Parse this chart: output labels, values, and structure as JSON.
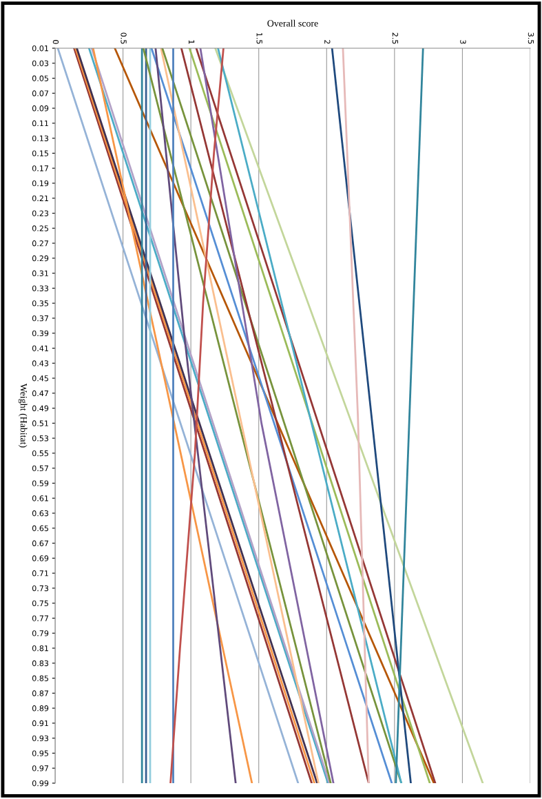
{
  "chart_data": {
    "type": "line",
    "orientation": "horizontal",
    "xlabel": "Overall score",
    "ylabel": "Weight (Habitat)",
    "xlim": [
      0,
      3.5
    ],
    "xticks": [
      0,
      0.5,
      1,
      1.5,
      2,
      2.5,
      3,
      3.5
    ],
    "ylim": [
      0.99,
      0.01
    ],
    "yticks": [
      0.01,
      0.03,
      0.05,
      0.07,
      0.09,
      0.11,
      0.13,
      0.15,
      0.17,
      0.19,
      0.21,
      0.23,
      0.25,
      0.27,
      0.29,
      0.31,
      0.33,
      0.35,
      0.37,
      0.39,
      0.41,
      0.43,
      0.45,
      0.47,
      0.49,
      0.51,
      0.53,
      0.55,
      0.57,
      0.59,
      0.61,
      0.63,
      0.65,
      0.67,
      0.69,
      0.71,
      0.73,
      0.75,
      0.77,
      0.79,
      0.81,
      0.83,
      0.85,
      0.87,
      0.89,
      0.91,
      0.93,
      0.95,
      0.97,
      0.99
    ],
    "grid": "x",
    "legend": false,
    "marker": "none",
    "line_style": "solid",
    "series": [
      {
        "color": "#95b3d7",
        "x": [
          0.01,
          0.99
        ],
        "values": [
          0.02,
          1.79
        ]
      },
      {
        "color": "#953735",
        "x": [
          0.01,
          0.99
        ],
        "values": [
          0.14,
          1.89
        ]
      },
      {
        "color": "#f79646",
        "x": [
          0.01,
          0.99
        ],
        "values": [
          0.15,
          1.91
        ]
      },
      {
        "color": "#403151",
        "x": [
          0.01,
          0.99
        ],
        "values": [
          0.16,
          1.93
        ]
      },
      {
        "color": "#4bacc6",
        "x": [
          0.01,
          0.99
        ],
        "values": [
          0.25,
          2.01
        ]
      },
      {
        "color": "#b3a2c7",
        "x": [
          0.01,
          0.99
        ],
        "values": [
          0.27,
          2.02
        ]
      },
      {
        "color": "#f79646",
        "x": [
          0.01,
          0.99
        ],
        "values": [
          0.28,
          1.45
        ]
      },
      {
        "color": "#b65708",
        "x": [
          0.01,
          0.99
        ],
        "values": [
          0.44,
          2.79
        ]
      },
      {
        "color": "#31859c",
        "x": [
          0.01,
          0.99
        ],
        "values": [
          0.64,
          0.64
        ]
      },
      {
        "color": "#376092",
        "x": [
          0.01,
          0.99
        ],
        "values": [
          0.67,
          0.67
        ]
      },
      {
        "color": "#93cddd",
        "x": [
          0.01,
          0.99
        ],
        "values": [
          0.7,
          0.7
        ]
      },
      {
        "color": "#77933c",
        "x": [
          0.01,
          0.99
        ],
        "values": [
          0.65,
          2.03
        ]
      },
      {
        "color": "#558ed5",
        "x": [
          0.01,
          0.99
        ],
        "values": [
          0.71,
          2.48
        ]
      },
      {
        "color": "#604a7b",
        "x": [
          0.01,
          0.39,
          0.99
        ],
        "values": [
          0.74,
          0.95,
          1.33
        ]
      },
      {
        "color": "#fabf8f",
        "x": [
          0.01,
          0.99
        ],
        "values": [
          0.78,
          1.94
        ]
      },
      {
        "color": "#77933c",
        "x": [
          0.01,
          0.99
        ],
        "values": [
          0.79,
          2.55
        ]
      },
      {
        "color": "#4f81bd",
        "x": [
          0.01,
          0.99
        ],
        "values": [
          0.87,
          0.87
        ]
      },
      {
        "color": "#953735",
        "x": [
          0.01,
          0.99
        ],
        "values": [
          0.93,
          2.31
        ]
      },
      {
        "color": "#9bbb59",
        "x": [
          0.01,
          0.99
        ],
        "values": [
          0.99,
          2.76
        ]
      },
      {
        "color": "#953735",
        "x": [
          0.01,
          0.99
        ],
        "values": [
          1.04,
          2.8
        ]
      },
      {
        "color": "#8064a2",
        "x": [
          0.01,
          0.51,
          0.99
        ],
        "values": [
          1.07,
          1.52,
          2.05
        ]
      },
      {
        "color": "#c3d69b",
        "x": [
          0.01,
          0.99
        ],
        "values": [
          1.18,
          3.15
        ]
      },
      {
        "color": "#4bacc6",
        "x": [
          0.01,
          0.99
        ],
        "values": [
          1.2,
          2.55
        ]
      },
      {
        "color": "#c0504d",
        "x": [
          0.01,
          0.15,
          0.35,
          0.55,
          0.81,
          0.99
        ],
        "values": [
          1.24,
          1.17,
          1.09,
          1.03,
          0.92,
          0.85
        ]
      },
      {
        "color": "#1f497d",
        "x": [
          0.01,
          0.99
        ],
        "values": [
          2.04,
          2.62
        ]
      },
      {
        "color": "#e6b9b8",
        "x": [
          0.01,
          0.5,
          0.99
        ],
        "values": [
          2.12,
          2.23,
          2.31
        ]
      },
      {
        "color": "#31859c",
        "x": [
          0.01,
          0.99
        ],
        "values": [
          2.71,
          2.51
        ]
      }
    ]
  }
}
